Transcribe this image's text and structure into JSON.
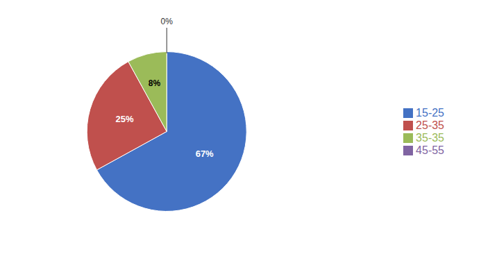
{
  "chart_data": {
    "type": "pie",
    "categories": [
      "15-25",
      "25-35",
      "35-35",
      "45-55"
    ],
    "values": [
      67,
      25,
      8,
      0
    ],
    "value_labels": [
      "67%",
      "25%",
      "8%",
      "0%"
    ],
    "colors": [
      "#4472C4",
      "#C0504D",
      "#9BBB59",
      "#8064A2"
    ],
    "data_labels": true,
    "legend": "right"
  }
}
